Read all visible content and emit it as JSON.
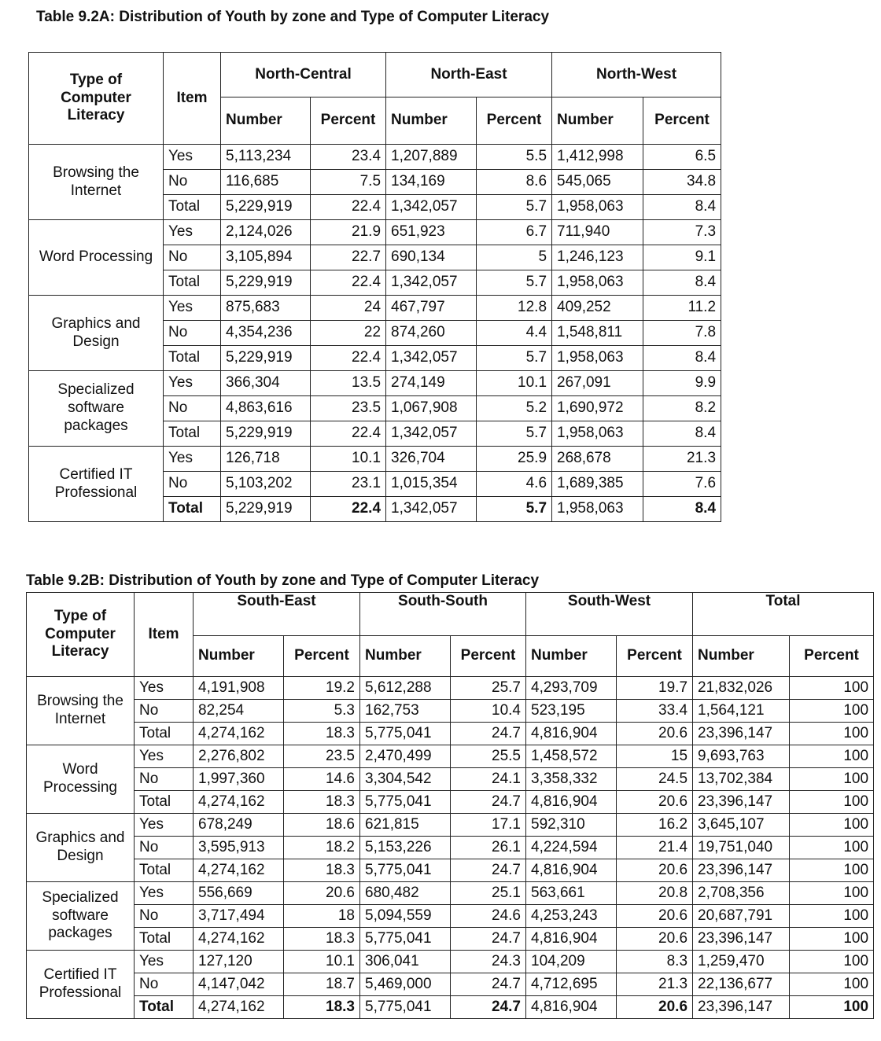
{
  "table_a": {
    "title": "Table 9.2A: Distribution of  Youth  by zone and Type of Computer Literacy",
    "header": {
      "type": "Type of Computer Literacy",
      "item": "Item",
      "zones": [
        "North-Central",
        "North-East",
        "North-West"
      ],
      "columns": [
        "Number",
        "Percent",
        "Number",
        "Percent",
        "Number",
        "Percent"
      ]
    },
    "groups": [
      {
        "label": "Browsing the Internet",
        "rows": [
          [
            "Yes",
            "5,113,234",
            "23.4",
            "1,207,889",
            "5.5",
            "1,412,998",
            "6.5"
          ],
          [
            "No",
            "116,685",
            "7.5",
            "134,169",
            "8.6",
            "545,065",
            "34.8"
          ],
          [
            "Total",
            "5,229,919",
            "22.4",
            "1,342,057",
            "5.7",
            "1,958,063",
            "8.4"
          ]
        ]
      },
      {
        "label": "Word Processing",
        "rows": [
          [
            "Yes",
            "2,124,026",
            "21.9",
            "651,923",
            "6.7",
            "711,940",
            "7.3"
          ],
          [
            "No",
            "3,105,894",
            "22.7",
            "690,134",
            "5",
            "1,246,123",
            "9.1"
          ],
          [
            "Total",
            "5,229,919",
            "22.4",
            "1,342,057",
            "5.7",
            "1,958,063",
            "8.4"
          ]
        ]
      },
      {
        "label": "Graphics and Design",
        "rows": [
          [
            "Yes",
            "875,683",
            "24",
            "467,797",
            "12.8",
            "409,252",
            "11.2"
          ],
          [
            "No",
            "4,354,236",
            "22",
            "874,260",
            "4.4",
            "1,548,811",
            "7.8"
          ],
          [
            "Total",
            "5,229,919",
            "22.4",
            "1,342,057",
            "5.7",
            "1,958,063",
            "8.4"
          ]
        ]
      },
      {
        "label": "Specialized software packages",
        "rows": [
          [
            "Yes",
            "366,304",
            "13.5",
            "274,149",
            "10.1",
            "267,091",
            "9.9"
          ],
          [
            "No",
            "4,863,616",
            "23.5",
            "1,067,908",
            "5.2",
            "1,690,972",
            "8.2"
          ],
          [
            "Total",
            "5,229,919",
            "22.4",
            "1,342,057",
            "5.7",
            "1,958,063",
            "8.4"
          ]
        ]
      },
      {
        "label": "Certified IT Professional",
        "rows": [
          [
            "Yes",
            "126,718",
            "10.1",
            "326,704",
            "25.9",
            "268,678",
            "21.3"
          ],
          [
            "No",
            "5,103,202",
            "23.1",
            "1,015,354",
            "4.6",
            "1,689,385",
            "7.6"
          ],
          [
            "Total",
            "5,229,919",
            "22.4",
            "1,342,057",
            "5.7",
            "1,958,063",
            "8.4"
          ]
        ]
      }
    ]
  },
  "table_b": {
    "title": "Table 9.2B: Distribution of Youth  by zone and Type of Computer Literacy",
    "header": {
      "type": "Type of Computer Literacy",
      "item": "Item",
      "zones": [
        "South-East",
        "South-South",
        "South-West",
        "Total"
      ],
      "columns": [
        "Number",
        "Percent",
        "Number",
        "Percent",
        "Number",
        "Percent",
        "Number",
        "Percent"
      ]
    },
    "groups": [
      {
        "label": "Browsing the Internet",
        "rows": [
          [
            "Yes",
            "4,191,908",
            "19.2",
            "5,612,288",
            "25.7",
            "4,293,709",
            "19.7",
            "21,832,026",
            "100"
          ],
          [
            "No",
            "82,254",
            "5.3",
            "162,753",
            "10.4",
            "523,195",
            "33.4",
            "1,564,121",
            "100"
          ],
          [
            "Total",
            "4,274,162",
            "18.3",
            "5,775,041",
            "24.7",
            "4,816,904",
            "20.6",
            "23,396,147",
            "100"
          ]
        ]
      },
      {
        "label": "Word Processing",
        "rows": [
          [
            "Yes",
            "2,276,802",
            "23.5",
            "2,470,499",
            "25.5",
            "1,458,572",
            "15",
            "9,693,763",
            "100"
          ],
          [
            "No",
            "1,997,360",
            "14.6",
            "3,304,542",
            "24.1",
            "3,358,332",
            "24.5",
            "13,702,384",
            "100"
          ],
          [
            "Total",
            "4,274,162",
            "18.3",
            "5,775,041",
            "24.7",
            "4,816,904",
            "20.6",
            "23,396,147",
            "100"
          ]
        ]
      },
      {
        "label": "Graphics and Design",
        "rows": [
          [
            "Yes",
            "678,249",
            "18.6",
            "621,815",
            "17.1",
            "592,310",
            "16.2",
            "3,645,107",
            "100"
          ],
          [
            "No",
            "3,595,913",
            "18.2",
            "5,153,226",
            "26.1",
            "4,224,594",
            "21.4",
            "19,751,040",
            "100"
          ],
          [
            "Total",
            "4,274,162",
            "18.3",
            "5,775,041",
            "24.7",
            "4,816,904",
            "20.6",
            "23,396,147",
            "100"
          ]
        ]
      },
      {
        "label": "Specialized software packages",
        "rows": [
          [
            "Yes",
            "556,669",
            "20.6",
            "680,482",
            "25.1",
            "563,661",
            "20.8",
            "2,708,356",
            "100"
          ],
          [
            "No",
            "3,717,494",
            "18",
            "5,094,559",
            "24.6",
            "4,253,243",
            "20.6",
            "20,687,791",
            "100"
          ],
          [
            "Total",
            "4,274,162",
            "18.3",
            "5,775,041",
            "24.7",
            "4,816,904",
            "20.6",
            "23,396,147",
            "100"
          ]
        ]
      },
      {
        "label": "Certified IT Professional",
        "rows": [
          [
            "Yes",
            "127,120",
            "10.1",
            "306,041",
            "24.3",
            "104,209",
            "8.3",
            "1,259,470",
            "100"
          ],
          [
            "No",
            "4,147,042",
            "18.7",
            "5,469,000",
            "24.7",
            "4,712,695",
            "21.3",
            "22,136,677",
            "100"
          ],
          [
            "Total",
            "4,274,162",
            "18.3",
            "5,775,041",
            "24.7",
            "4,816,904",
            "20.6",
            "23,396,147",
            "100"
          ]
        ]
      }
    ]
  }
}
